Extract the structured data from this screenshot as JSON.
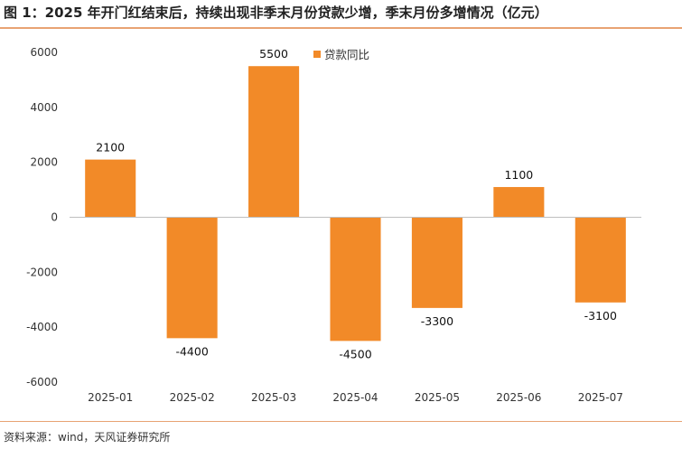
{
  "header": {
    "title": "图 1：2025 年开门红结束后，持续出现非季末月份贷款少增，季末月份多增情况（亿元）"
  },
  "footer": {
    "source": "资料来源：wind，天风证券研究所"
  },
  "chart_data": {
    "type": "bar",
    "title": "",
    "xlabel": "",
    "ylabel": "",
    "categories": [
      "2025-01",
      "2025-02",
      "2025-03",
      "2025-04",
      "2025-05",
      "2025-06",
      "2025-07"
    ],
    "series": [
      {
        "name": "贷款同比",
        "values": [
          2100,
          -4400,
          5500,
          -4500,
          -3300,
          1100,
          -3100
        ]
      }
    ],
    "data_labels": [
      "2100",
      "-4400",
      "5500",
      "-4500",
      "-3300",
      "1100",
      "-3100"
    ],
    "yticks": [
      "-6000",
      "-4000",
      "-2000",
      "0",
      "2000",
      "4000",
      "6000"
    ],
    "ylim": [
      -6000,
      6000
    ],
    "grid": false,
    "legend_position": "top-right",
    "colors": {
      "bar": "#f28a28",
      "axis": "#bfbfbf"
    }
  }
}
